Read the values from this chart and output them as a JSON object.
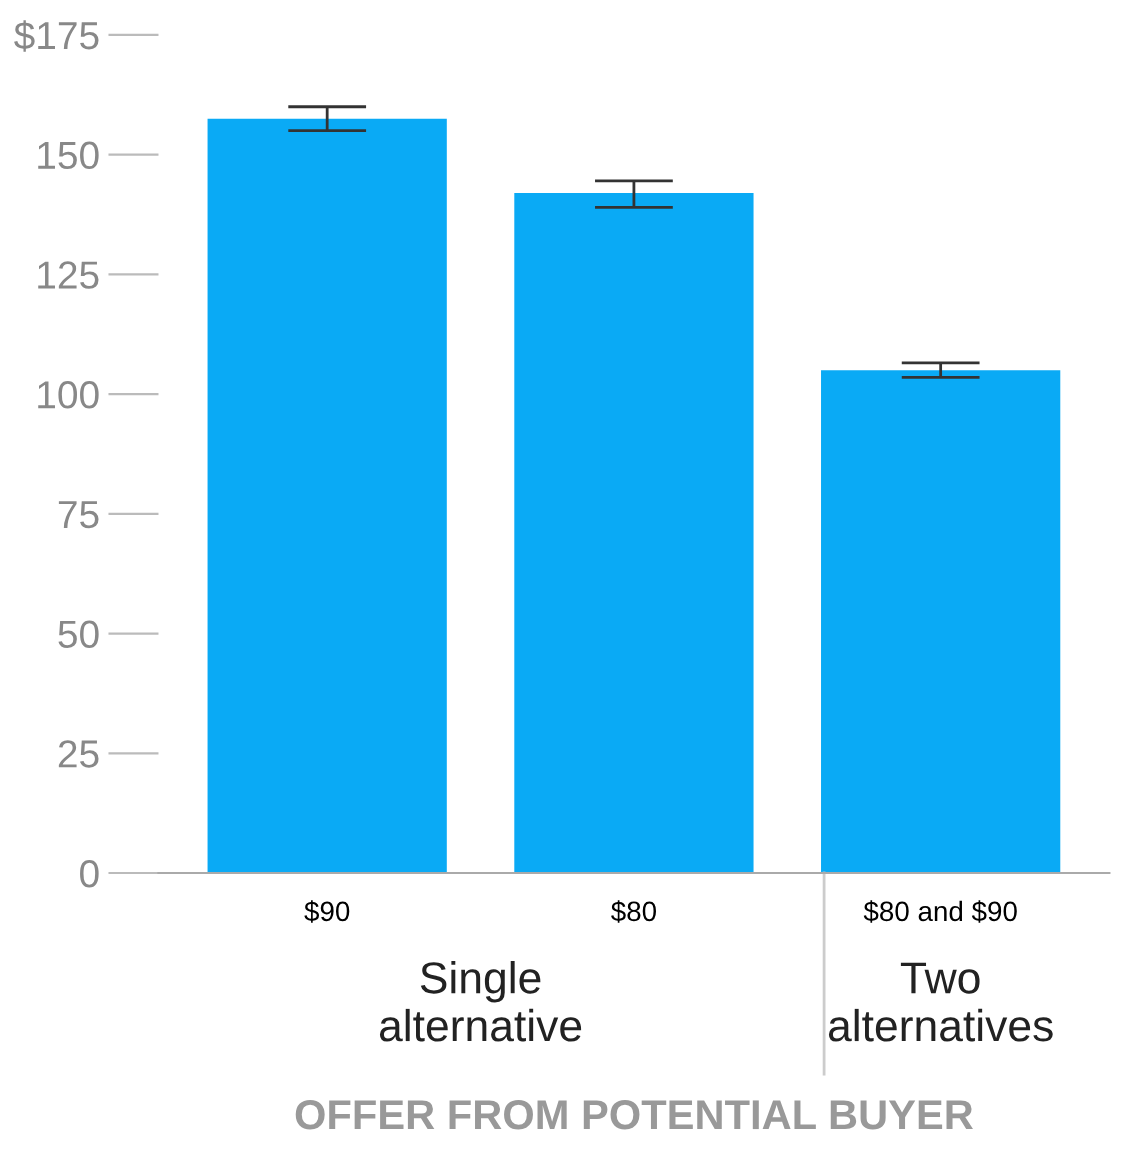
{
  "chart_data": {
    "type": "bar",
    "categories": [
      "$90",
      "$80",
      "$80 and $90"
    ],
    "values": [
      157.5,
      142,
      105
    ],
    "errors": [
      [
        155,
        160
      ],
      [
        139,
        144.5
      ],
      [
        103.5,
        106.5
      ]
    ],
    "color": "#0aaaf5",
    "xlabel": "OFFER FROM POTENTIAL BUYER",
    "annotations": [
      "Single\nalternative",
      "Two\nalternatives"
    ],
    "ylim": [
      0,
      175
    ],
    "yticks": [
      0,
      25,
      50,
      75,
      100,
      125,
      150,
      {
        "value": 175,
        "label": "$175"
      }
    ],
    "grid": false
  }
}
